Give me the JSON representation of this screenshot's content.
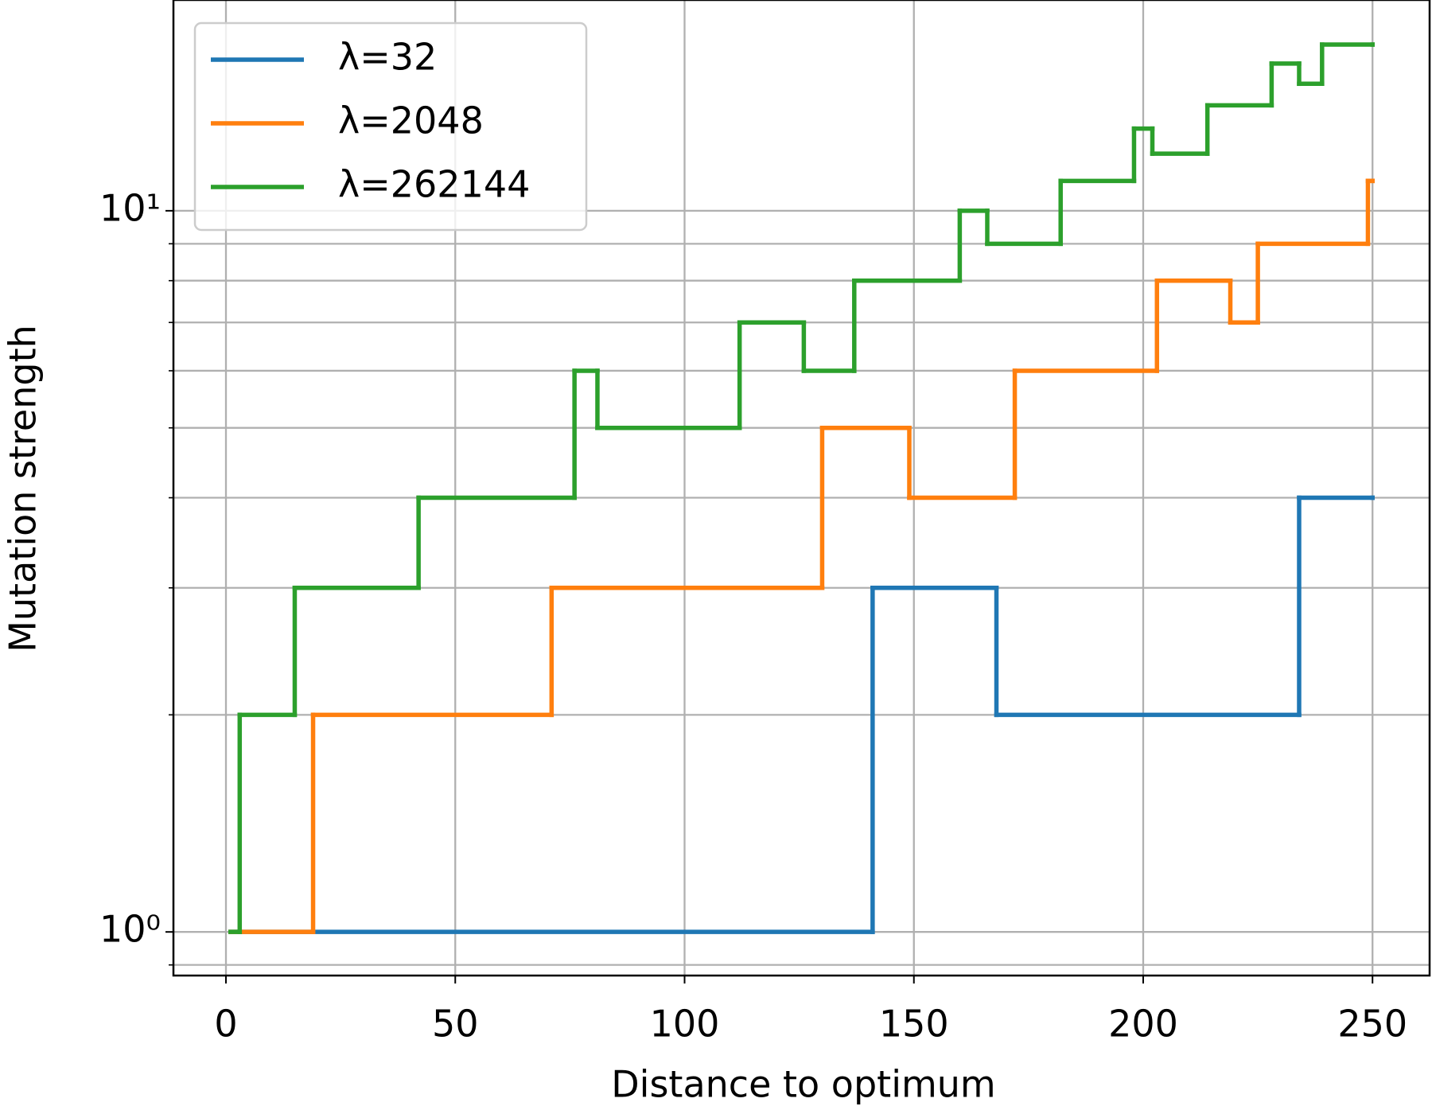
{
  "chart_data": {
    "type": "step",
    "step": "post",
    "xlabel": "Distance to optimum",
    "ylabel": "Mutation strength",
    "xlim": [
      -11.45,
      262.45
    ],
    "xticks": [
      0,
      50,
      100,
      150,
      200,
      250
    ],
    "ylim": [
      0.87,
      19.6
    ],
    "yscale": "log",
    "yticks": [
      {
        "value": 1,
        "label": "10⁰"
      },
      {
        "value": 10,
        "label": "10¹"
      }
    ],
    "yminorticks": [
      0.9,
      2,
      3,
      4,
      5,
      6,
      7,
      8,
      9
    ],
    "grid": true,
    "legend": "upper left",
    "series": [
      {
        "name": "λ=32",
        "color": "#1f77b4",
        "x": [
          1,
          141,
          168,
          234,
          250
        ],
        "values": [
          1,
          3,
          2,
          4,
          4
        ]
      },
      {
        "name": "λ=2048",
        "color": "#ff7f0e",
        "x": [
          1,
          19,
          71,
          130,
          149,
          172,
          203,
          219,
          225,
          249,
          250
        ],
        "values": [
          1,
          2,
          3,
          5,
          4,
          6,
          8,
          7,
          9,
          11,
          11
        ]
      },
      {
        "name": "λ=262144",
        "color": "#2ca02c",
        "x": [
          1,
          3,
          15,
          42,
          76,
          81,
          112,
          126,
          137,
          160,
          166,
          182,
          198,
          202,
          214,
          228,
          234,
          239,
          250
        ],
        "values": [
          1,
          2,
          3,
          4,
          6,
          5,
          7,
          6,
          8,
          10,
          9,
          11,
          13,
          12,
          14,
          16,
          15,
          17,
          17
        ]
      }
    ]
  }
}
